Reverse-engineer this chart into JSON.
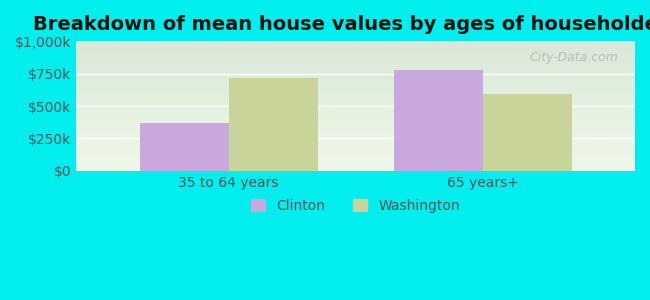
{
  "title": "Breakdown of mean house values by ages of householders",
  "categories": [
    "35 to 64 years",
    "65 years+"
  ],
  "series": {
    "Clinton": [
      370000,
      775000
    ],
    "Washington": [
      715000,
      595000
    ]
  },
  "colors": {
    "Clinton": "#c9a8e0",
    "Washington": "#c8d49a"
  },
  "ylim": [
    0,
    1000000
  ],
  "yticks": [
    0,
    250000,
    500000,
    750000,
    1000000
  ],
  "ytick_labels": [
    "$0",
    "$250k",
    "$500k",
    "$750k",
    "$1,000k"
  ],
  "background_color": "#00eeee",
  "plot_bg_color": "#eef5e8",
  "bar_width": 0.35,
  "title_fontsize": 14,
  "tick_fontsize": 10,
  "legend_fontsize": 10,
  "watermark": "City-Data.com"
}
